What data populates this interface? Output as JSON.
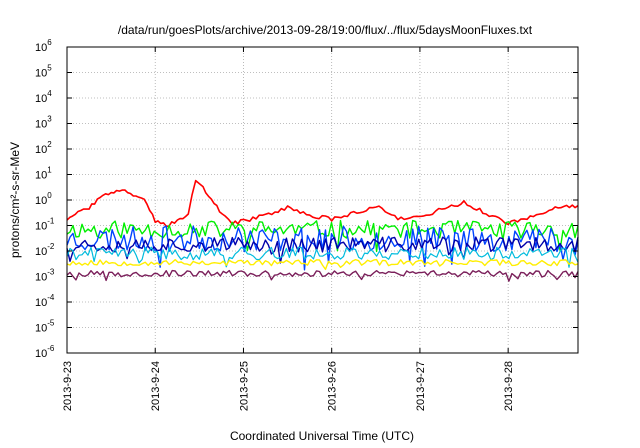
{
  "chart_data": {
    "type": "line",
    "title": "/data/run/goesPlots/archive/2013-09-28/19:00/flux/../flux/5daysMoonFluxes.txt",
    "xlabel": "Coordinated Universal Time (UTC)",
    "ylabel": "protons/cm²-s-sr-MeV",
    "yscale": "log",
    "ylim": [
      1e-06,
      1000000.0
    ],
    "xlim": [
      "2013-09-23 00:00",
      "2013-09-28 19:00"
    ],
    "grid": true,
    "legend": "none",
    "x_ticks": [
      "2013-9-23",
      "2013-9-24",
      "2013-9-25",
      "2013-9-26",
      "2013-9-27",
      "2013-9-28"
    ],
    "y_ticks": [
      {
        "value": 1e-06,
        "base": "10",
        "exp": "-6"
      },
      {
        "value": 1e-05,
        "base": "10",
        "exp": "-5"
      },
      {
        "value": 0.0001,
        "base": "10",
        "exp": "-4"
      },
      {
        "value": 0.001,
        "base": "10",
        "exp": "-3"
      },
      {
        "value": 0.01,
        "base": "10",
        "exp": "-2"
      },
      {
        "value": 0.1,
        "base": "10",
        "exp": "-1"
      },
      {
        "value": 1,
        "base": "10",
        "exp": "0"
      },
      {
        "value": 10,
        "base": "10",
        "exp": "1"
      },
      {
        "value": 100,
        "base": "10",
        "exp": "2"
      },
      {
        "value": 1000,
        "base": "10",
        "exp": "3"
      },
      {
        "value": 10000,
        "base": "10",
        "exp": "4"
      },
      {
        "value": 100000,
        "base": "10",
        "exp": "5"
      },
      {
        "value": 1000000,
        "base": "10",
        "exp": "6"
      }
    ],
    "series": [
      {
        "color": "#ff0000",
        "width": 1.6,
        "x": [
          "2013-09-23 00:00",
          "2013-09-23 03:00",
          "2013-09-23 06:00",
          "2013-09-23 09:00",
          "2013-09-23 12:00",
          "2013-09-23 15:00",
          "2013-09-23 18:00",
          "2013-09-23 21:00",
          "2013-09-24 00:00",
          "2013-09-24 03:00",
          "2013-09-24 06:00",
          "2013-09-24 09:00",
          "2013-09-24 11:00",
          "2013-09-24 13:00",
          "2013-09-24 16:00",
          "2013-09-24 19:00",
          "2013-09-24 21:00",
          "2013-09-25 00:00",
          "2013-09-25 06:00",
          "2013-09-25 12:00",
          "2013-09-25 18:00",
          "2013-09-26 00:00",
          "2013-09-26 06:00",
          "2013-09-26 12:00",
          "2013-09-26 18:00",
          "2013-09-27 00:00",
          "2013-09-27 06:00",
          "2013-09-27 12:00",
          "2013-09-27 18:00",
          "2013-09-28 00:00",
          "2013-09-28 06:00",
          "2013-09-28 12:00",
          "2013-09-28 19:00"
        ],
        "y": [
          0.15,
          0.3,
          0.5,
          1.2,
          2.0,
          2.5,
          1.4,
          0.9,
          0.15,
          0.1,
          0.15,
          0.3,
          6.0,
          3.0,
          0.8,
          0.2,
          0.12,
          0.15,
          0.25,
          0.5,
          0.25,
          0.18,
          0.3,
          0.6,
          0.2,
          0.2,
          0.45,
          0.8,
          0.3,
          0.12,
          0.2,
          0.5,
          0.6
        ]
      },
      {
        "color": "#00ee00",
        "width": 1.4,
        "base": 0.07,
        "amp": 0.35,
        "seed": 11
      },
      {
        "color": "#0044ff",
        "width": 1.4,
        "base": 0.03,
        "amp": 0.5,
        "seed": 23
      },
      {
        "color": "#0000aa",
        "width": 1.4,
        "base": 0.018,
        "amp": 0.3,
        "seed": 37
      },
      {
        "color": "#00bbdd",
        "width": 1.2,
        "base": 0.008,
        "amp": 0.25,
        "seed": 41
      },
      {
        "color": "#ffee00",
        "width": 1.4,
        "base": 0.0035,
        "amp": 0.12,
        "seed": 53
      },
      {
        "color": "#7a1f5a",
        "width": 1.4,
        "base": 0.0013,
        "amp": 0.12,
        "seed": 67
      }
    ]
  }
}
